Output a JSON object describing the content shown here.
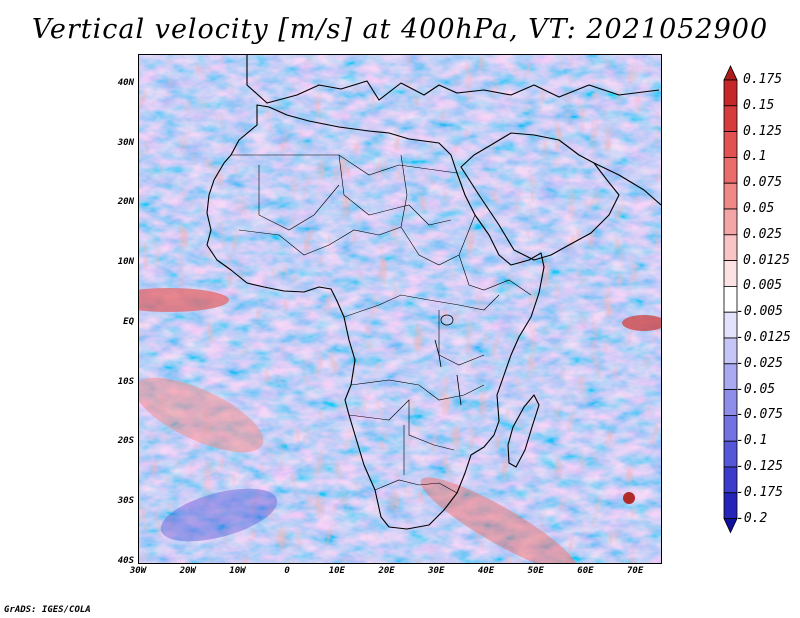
{
  "title": "Vertical velocity [m/s] at 400hPa, VT: 2021052900",
  "credit": "GrADS: IGES/COLA",
  "map": {
    "variable": "Vertical velocity",
    "units": "m/s",
    "level": "400hPa",
    "valid_time": "2021052900",
    "lon_range": [
      -30,
      75
    ],
    "lat_range": [
      -40,
      45
    ],
    "lat_ticks": [
      {
        "value": 40,
        "label": "40N"
      },
      {
        "value": 30,
        "label": "30N"
      },
      {
        "value": 20,
        "label": "20N"
      },
      {
        "value": 10,
        "label": "10N"
      },
      {
        "value": 0,
        "label": "EQ"
      },
      {
        "value": -10,
        "label": "10S"
      },
      {
        "value": -20,
        "label": "20S"
      },
      {
        "value": -30,
        "label": "30S"
      },
      {
        "value": -40,
        "label": "40S"
      }
    ],
    "lon_ticks": [
      {
        "value": -30,
        "label": "30W"
      },
      {
        "value": -20,
        "label": "20W"
      },
      {
        "value": -10,
        "label": "10W"
      },
      {
        "value": 0,
        "label": "0"
      },
      {
        "value": 10,
        "label": "10E"
      },
      {
        "value": 20,
        "label": "20E"
      },
      {
        "value": 30,
        "label": "30E"
      },
      {
        "value": 40,
        "label": "40E"
      },
      {
        "value": 50,
        "label": "50E"
      },
      {
        "value": 60,
        "label": "60E"
      },
      {
        "value": 70,
        "label": "70E"
      }
    ]
  },
  "colorbar": {
    "levels": [
      "0.175",
      "0.15",
      "0.125",
      "0.1",
      "0.075",
      "0.05",
      "0.025",
      "0.0125",
      "0.005",
      "-0.005",
      "-0.0125",
      "-0.025",
      "-0.05",
      "-0.075",
      "-0.1",
      "-0.125",
      "-0.175",
      "-0.2"
    ],
    "colors": [
      "#b01c1c",
      "#c42828",
      "#d63c3c",
      "#e25252",
      "#ea6c6c",
      "#f08888",
      "#f4a6a6",
      "#f8c4c4",
      "#fce2e2",
      "#ffffff",
      "#e2e2fc",
      "#c6c6f6",
      "#aaaaf0",
      "#8e8eea",
      "#7272e2",
      "#5656d8",
      "#3c3ccc",
      "#2424b8",
      "#1010a0"
    ]
  }
}
